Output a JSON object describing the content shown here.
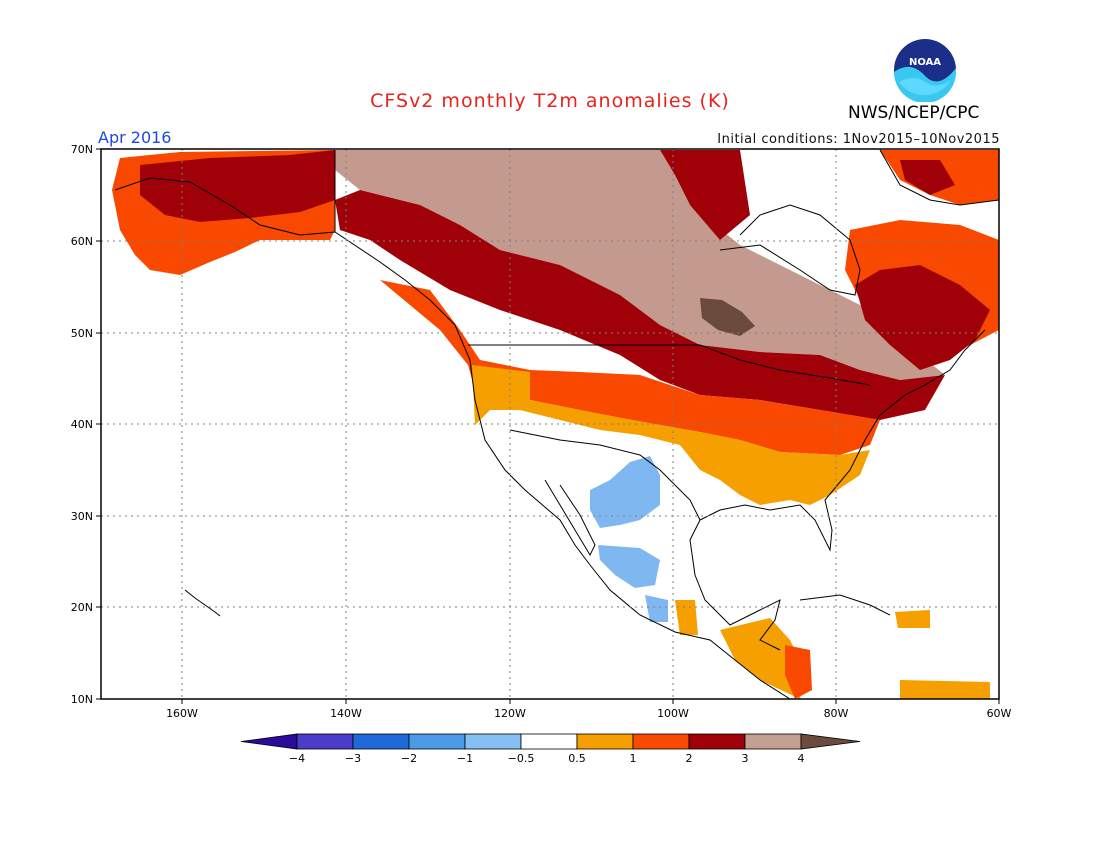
{
  "title": "CFSv2 monthly T2m anomalies (K)",
  "period": "Apr 2016",
  "initial_conditions": "Initial conditions: 1Nov2015–10Nov2015",
  "agency": "NWS/NCEP/CPC",
  "logo_text": "NOAA",
  "colors": {
    "title": "#e8231b",
    "period": "#1f47e0",
    "ocean": "#ffffff",
    "coast": "#000000",
    "gridline": "#808080"
  },
  "map": {
    "lat_labels": [
      "70N",
      "60N",
      "50N",
      "40N",
      "30N",
      "20N",
      "10N"
    ],
    "lon_labels": [
      "160W",
      "140W",
      "120W",
      "100W",
      "80W",
      "60W"
    ],
    "lat_range": [
      10,
      70
    ],
    "lon_range": [
      -170,
      -60
    ]
  },
  "colorbar": {
    "labels": [
      "−4",
      "−3",
      "−2",
      "−1",
      "−0.5",
      "0.5",
      "1",
      "2",
      "3",
      "4"
    ],
    "colors": [
      "#2a0b9a",
      "#4b3dc9",
      "#1f6ad8",
      "#4d9be8",
      "#86bff4",
      "#ffffff",
      "#f5a000",
      "#fa4a00",
      "#a00008",
      "#c4a092",
      "#6a4b3d"
    ]
  }
}
